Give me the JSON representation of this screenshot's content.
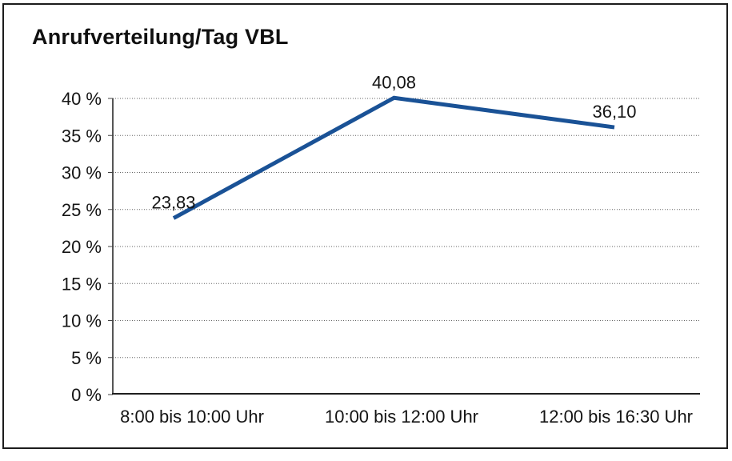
{
  "chart_data": {
    "type": "line",
    "title": "Anrufverteilung/Tag VBL",
    "categories": [
      "8:00 bis 10:00 Uhr",
      "10:00 bis 12:00 Uhr",
      "12:00 bis 16:30 Uhr"
    ],
    "values": [
      23.83,
      40.08,
      36.1
    ],
    "data_labels": [
      "23,83",
      "40,08",
      "36,10"
    ],
    "yticks": [
      0,
      5,
      10,
      15,
      20,
      25,
      30,
      35,
      40
    ],
    "ytick_labels": [
      "0 %",
      "5 %",
      "10 %",
      "15 %",
      "20 %",
      "25 %",
      "30 %",
      "35 %",
      "40 %"
    ],
    "ylim": [
      0,
      40
    ],
    "xlabel": "",
    "ylabel": "",
    "legend": "none",
    "grid": "horizontal-dotted",
    "line_color": "#1A5296",
    "text_color": "#141414",
    "border_color": "#1c1c1c"
  }
}
